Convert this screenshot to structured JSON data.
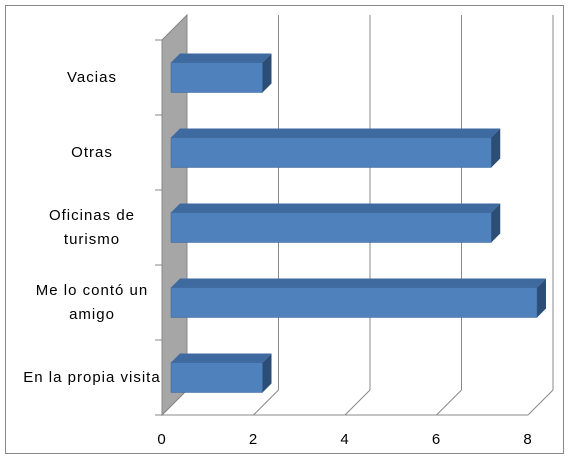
{
  "chart_data": {
    "type": "bar",
    "orientation": "horizontal",
    "categories": [
      "En la propia visita",
      "Me lo contó un amigo",
      "Oficinas de turismo",
      "Otras",
      "Vacias"
    ],
    "values": [
      2,
      8,
      7,
      7,
      2
    ],
    "color": "#4f81bd",
    "xlim": [
      0,
      8
    ],
    "xticks": [
      0,
      2,
      4,
      6,
      8
    ],
    "grid": true
  }
}
